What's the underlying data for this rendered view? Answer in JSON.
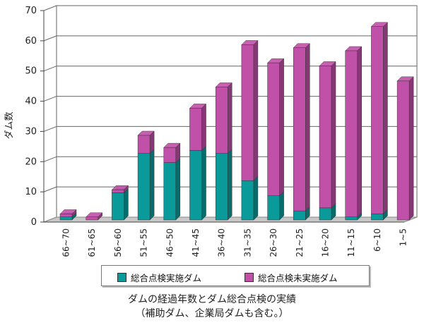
{
  "chart_data": {
    "type": "bar",
    "stacked": true,
    "ylabel": "ダム数",
    "ylim": [
      0,
      70
    ],
    "yticks": [
      "0",
      "10",
      "20",
      "30",
      "40",
      "50",
      "60",
      "70"
    ],
    "grid": true,
    "categories": [
      "66~70",
      "61~65",
      "56~60",
      "51~55",
      "46~50",
      "41~45",
      "36~40",
      "31~35",
      "26~30",
      "21~25",
      "16~20",
      "11~15",
      "6~10",
      "1~5"
    ],
    "series": [
      {
        "name": "総合点検実施ダム",
        "color": "#0a9a9a",
        "values": [
          1,
          0,
          9,
          22,
          19,
          23,
          22,
          13,
          8,
          3,
          4,
          1,
          2,
          0
        ]
      },
      {
        "name": "総合点検未実施ダム",
        "color": "#c050a8",
        "values": [
          1,
          1,
          1,
          6,
          5,
          14,
          22,
          45,
          44,
          54,
          47,
          55,
          62,
          46
        ]
      }
    ],
    "legend_position": "bottom",
    "caption_line1": "ダムの経過年数とダム総合点検の実績",
    "caption_line2": "（補助ダム、企業局ダムも含む。）"
  }
}
